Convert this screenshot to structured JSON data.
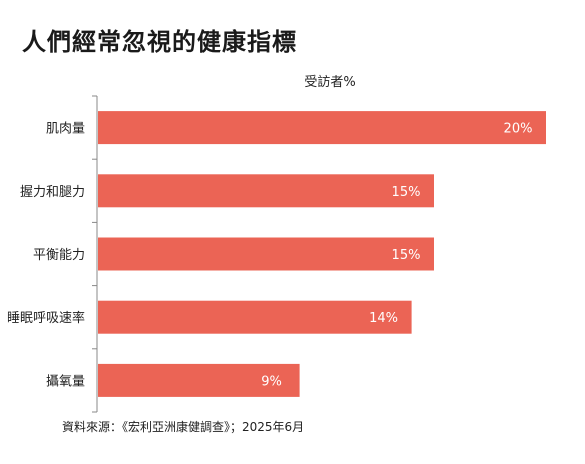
{
  "chart_data": {
    "type": "bar",
    "orientation": "horizontal",
    "title": "人們經常忽視的健康指標",
    "series_label": "受訪者%",
    "categories": [
      "肌肉量",
      "握力和腿力",
      "平衡能力",
      "睡眠呼吸速率",
      "攝氧量"
    ],
    "values": [
      20,
      15,
      15,
      14,
      9
    ],
    "value_labels": [
      "20%",
      "15%",
      "15%",
      "14%",
      "9%"
    ],
    "xlim": [
      0,
      20
    ],
    "grid": false,
    "legend": "none",
    "bar_color": "#EB6455",
    "label_color": "#FFFFFF",
    "source": "資料來源：《宏利亞洲康健調查》；2025年6月"
  }
}
